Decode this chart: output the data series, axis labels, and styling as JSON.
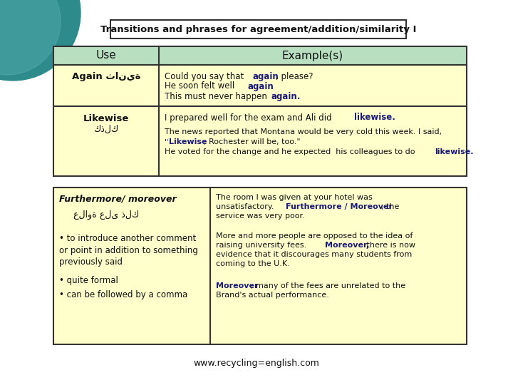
{
  "title": "Transitions and phrases for agreement/addition/similarity I",
  "bg_color": "#ffffff",
  "teal_circle_color": "#2d8b8b",
  "header_bg": "#b8e0c0",
  "row_bg": "#ffffcc",
  "border_color": "#333333",
  "bold_color": "#1a1a7a",
  "text_color": "#111111",
  "header_use": "Use",
  "header_example": "Example(s)",
  "footer": "www.recycling=english.com"
}
